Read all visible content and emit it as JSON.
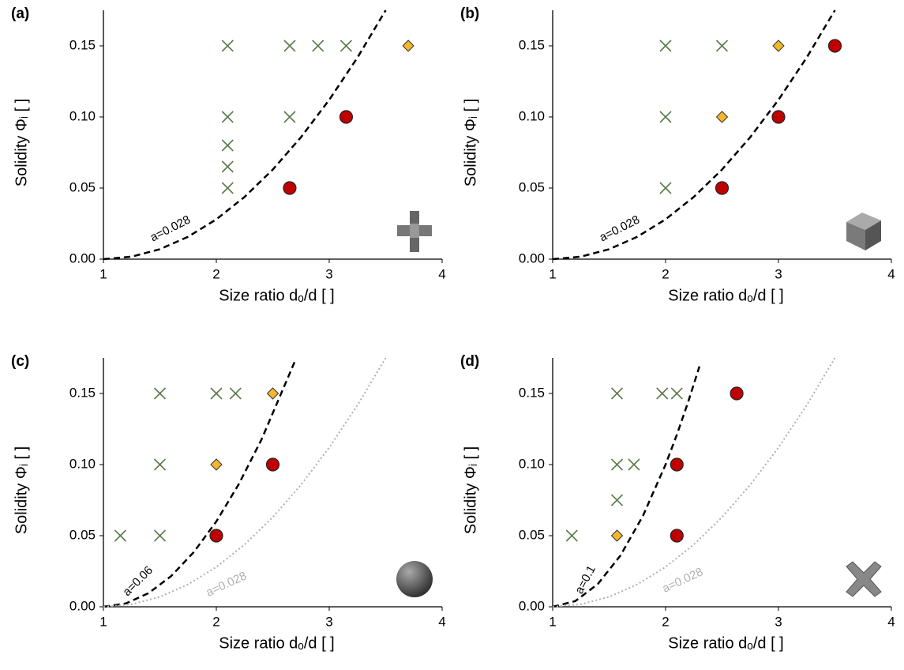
{
  "chart_data": [
    {
      "type": "scatter",
      "panel_label": "(a)",
      "xlabel": "Size ratio dₒ/d [ ]",
      "ylabel": "Solidity Φᵢ [ ]",
      "xlim": [
        1,
        4
      ],
      "xticks": [
        1,
        2,
        3,
        4
      ],
      "ylim": [
        0,
        0.175
      ],
      "yticks": [
        {
          "value": 0,
          "label": "0.00"
        },
        0.05,
        {
          "value": 0.1,
          "label": "0.10"
        },
        0.15
      ],
      "series": [
        {
          "marker": "x",
          "color": "#5b7a4b",
          "x": [
            2.1,
            2.65,
            2.9,
            3.15,
            2.1,
            2.65,
            2.1,
            2.1,
            2.1
          ],
          "values": [
            0.15,
            0.15,
            0.15,
            0.15,
            0.1,
            0.1,
            0.08,
            0.065,
            0.05
          ]
        },
        {
          "marker": "diamond",
          "color": "#f2b72c",
          "x": [
            3.7
          ],
          "values": [
            0.15
          ]
        },
        {
          "marker": "circle",
          "color": "#c00000",
          "x": [
            3.15,
            2.65
          ],
          "values": [
            0.1,
            0.05
          ]
        },
        {
          "marker": "dashed",
          "color": "#000000",
          "label": "a=0.028",
          "x": [
            1,
            1.25,
            1.5,
            1.75,
            2,
            2.25,
            2.5,
            2.75,
            3,
            3.25,
            3.5
          ],
          "values": [
            0,
            0.00175,
            0.007,
            0.01575,
            0.028,
            0.04375,
            0.063,
            0.08575,
            0.112,
            0.14175,
            0.175
          ]
        }
      ]
    },
    {
      "type": "scatter",
      "panel_label": "(b)",
      "xlabel": "Size ratio dₒ/d [ ]",
      "ylabel": "Solidity Φᵢ [ ]",
      "xlim": [
        1,
        4
      ],
      "xticks": [
        1,
        2,
        3,
        4
      ],
      "ylim": [
        0,
        0.175
      ],
      "yticks": [
        {
          "value": 0,
          "label": "0.00"
        },
        0.05,
        {
          "value": 0.1,
          "label": "0.10"
        },
        0.15
      ],
      "series": [
        {
          "marker": "x",
          "color": "#5b7a4b",
          "x": [
            2,
            2.5,
            2,
            2
          ],
          "values": [
            0.15,
            0.15,
            0.1,
            0.05
          ]
        },
        {
          "marker": "diamond",
          "color": "#f2b72c",
          "x": [
            3,
            2.5
          ],
          "values": [
            0.15,
            0.1
          ]
        },
        {
          "marker": "circle",
          "color": "#c00000",
          "x": [
            3.5,
            3,
            2.5
          ],
          "values": [
            0.15,
            0.1,
            0.05
          ]
        },
        {
          "marker": "dashed",
          "color": "#000000",
          "label": "a=0.028",
          "x": [
            1,
            1.25,
            1.5,
            1.75,
            2,
            2.25,
            2.5,
            2.75,
            3,
            3.25,
            3.5
          ],
          "values": [
            0,
            0.00175,
            0.007,
            0.01575,
            0.028,
            0.04375,
            0.063,
            0.08575,
            0.112,
            0.14175,
            0.175
          ]
        }
      ]
    },
    {
      "type": "scatter",
      "panel_label": "(c)",
      "xlabel": "Size ratio dₒ/d [ ]",
      "ylabel": "Solidity Φᵢ [ ]",
      "xlim": [
        1,
        4
      ],
      "xticks": [
        1,
        2,
        3,
        4
      ],
      "ylim": [
        0,
        0.175
      ],
      "yticks": [
        {
          "value": 0,
          "label": "0.00"
        },
        0.05,
        {
          "value": 0.1,
          "label": "0.10"
        },
        0.15
      ],
      "series": [
        {
          "marker": "x",
          "color": "#5b7a4b",
          "x": [
            1.5,
            2,
            2.17,
            1.5,
            1.15,
            1.5
          ],
          "values": [
            0.15,
            0.15,
            0.15,
            0.1,
            0.05,
            0.05
          ]
        },
        {
          "marker": "diamond",
          "color": "#f2b72c",
          "x": [
            2.5,
            2
          ],
          "values": [
            0.15,
            0.1
          ]
        },
        {
          "marker": "circle",
          "color": "#c00000",
          "x": [
            2.5,
            2
          ],
          "values": [
            0.1,
            0.05
          ]
        },
        {
          "marker": "dashed",
          "color": "#000000",
          "label": "a=0.06",
          "x": [
            1,
            1.2,
            1.4,
            1.6,
            1.8,
            2,
            2.2,
            2.4,
            2.7
          ],
          "values": [
            0,
            0.0024,
            0.0096,
            0.0216,
            0.0384,
            0.06,
            0.0864,
            0.1176,
            0.1734
          ]
        },
        {
          "marker": "dotted",
          "color": "#b0b0b0",
          "label": "a=0.028",
          "x": [
            1,
            1.25,
            1.5,
            1.75,
            2,
            2.25,
            2.5,
            2.75,
            3,
            3.25,
            3.5
          ],
          "values": [
            0,
            0.00175,
            0.007,
            0.01575,
            0.028,
            0.04375,
            0.063,
            0.08575,
            0.112,
            0.14175,
            0.175
          ]
        }
      ]
    },
    {
      "type": "scatter",
      "panel_label": "(d)",
      "xlabel": "Size ratio dₒ/d [ ]",
      "ylabel": "Solidity Φᵢ [ ]",
      "xlim": [
        1,
        4
      ],
      "xticks": [
        1,
        2,
        3,
        4
      ],
      "ylim": [
        0,
        0.175
      ],
      "yticks": [
        {
          "value": 0,
          "label": "0.00"
        },
        0.05,
        {
          "value": 0.1,
          "label": "0.10"
        },
        0.15
      ],
      "series": [
        {
          "marker": "x",
          "color": "#5b7a4b",
          "x": [
            1.57,
            1.97,
            2.1,
            1.57,
            1.72,
            1.57,
            1.17
          ],
          "values": [
            0.15,
            0.15,
            0.15,
            0.1,
            0.1,
            0.075,
            0.05
          ]
        },
        {
          "marker": "diamond",
          "color": "#f2b72c",
          "x": [
            1.57
          ],
          "values": [
            0.05
          ]
        },
        {
          "marker": "circle",
          "color": "#c00000",
          "x": [
            2.63,
            2.1,
            2.1
          ],
          "values": [
            0.15,
            0.1,
            0.05
          ]
        },
        {
          "marker": "dashed",
          "color": "#000000",
          "label": "a=0.1",
          "x": [
            1,
            1.2,
            1.4,
            1.6,
            1.8,
            2,
            2.1,
            2.2,
            2.3
          ],
          "values": [
            0,
            0.004,
            0.016,
            0.036,
            0.064,
            0.1,
            0.121,
            0.144,
            0.169
          ]
        },
        {
          "marker": "dotted",
          "color": "#b0b0b0",
          "label": "a=0.028",
          "x": [
            1,
            1.25,
            1.5,
            1.75,
            2,
            2.25,
            2.5,
            2.75,
            3,
            3.25,
            3.5
          ],
          "values": [
            0,
            0.00175,
            0.007,
            0.01575,
            0.028,
            0.04375,
            0.063,
            0.08575,
            0.112,
            0.14175,
            0.175
          ]
        }
      ]
    }
  ]
}
